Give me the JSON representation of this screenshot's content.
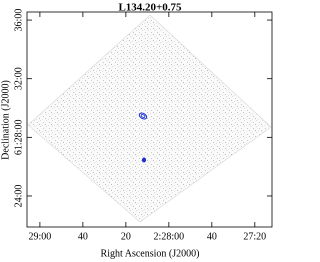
{
  "chart_data": {
    "type": "image",
    "title": "L134.20+0.75",
    "x_label": "Right Ascension (J2000)",
    "y_label": "Declination (J2000)",
    "xlim": [
      8946,
      8832
    ],
    "xticks": [
      {
        "value": 8940,
        "label": "29:00"
      },
      {
        "value": 8920,
        "label": "40"
      },
      {
        "value": 8900,
        "label": "20"
      },
      {
        "value": 8880,
        "label": "2:28:00"
      },
      {
        "value": 8860,
        "label": "40"
      },
      {
        "value": 8840,
        "label": "27:20"
      }
    ],
    "ylim": [
      220913,
      221793
    ],
    "yticks": [
      {
        "value": 221040,
        "label": "24:00"
      },
      {
        "value": 221280,
        "label": "61:28:00"
      },
      {
        "value": 221520,
        "label": "32:00"
      },
      {
        "value": 221760,
        "label": "36:00"
      }
    ]
  }
}
